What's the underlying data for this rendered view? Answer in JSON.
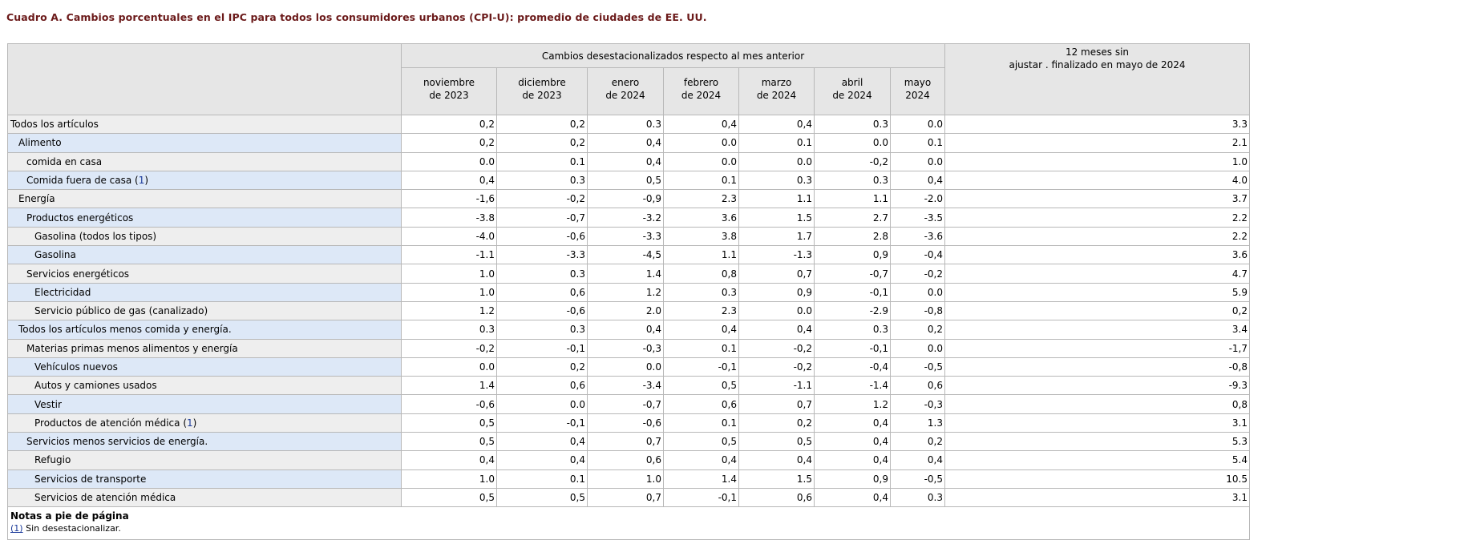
{
  "title": "Cuadro A. Cambios porcentuales en el IPC para todos los consumidores urbanos (CPI-U): promedio de ciudades de EE. UU.",
  "header": {
    "group_label": "Cambios desestacionalizados respecto al mes anterior",
    "annual_label_1": "12 meses sin",
    "annual_label_2": "ajustar . finalizado en mayo de 2024",
    "months": [
      {
        "line1": "noviembre",
        "line2": "de 2023"
      },
      {
        "line1": "diciembre",
        "line2": "de 2023"
      },
      {
        "line1": "enero",
        "line2": "de 2024"
      },
      {
        "line1": "febrero",
        "line2": "de 2024"
      },
      {
        "line1": "marzo",
        "line2": "de 2024"
      },
      {
        "line1": "abril",
        "line2": "de 2024"
      },
      {
        "line1": "mayo",
        "line2": "2024"
      }
    ]
  },
  "rows": [
    {
      "label": "Todos los artículos",
      "level": 0,
      "fn": "",
      "values": [
        "0,2",
        "0,2",
        "0.3",
        "0,4",
        "0,4",
        "0.3",
        "0.0"
      ],
      "annual": "3.3"
    },
    {
      "label": "Alimento",
      "level": 1,
      "fn": "",
      "values": [
        "0,2",
        "0,2",
        "0,4",
        "0.0",
        "0.1",
        "0.0",
        "0.1"
      ],
      "annual": "2.1"
    },
    {
      "label": "comida en casa",
      "level": 2,
      "fn": "",
      "values": [
        "0.0",
        "0.1",
        "0,4",
        "0.0",
        "0.0",
        "-0,2",
        "0.0"
      ],
      "annual": "1.0"
    },
    {
      "label": "Comida fuera de casa",
      "level": 2,
      "fn": "1",
      "values": [
        "0,4",
        "0.3",
        "0,5",
        "0.1",
        "0.3",
        "0.3",
        "0,4"
      ],
      "annual": "4.0"
    },
    {
      "label": "Energía",
      "level": 1,
      "fn": "",
      "values": [
        "-1,6",
        "-0,2",
        "-0,9",
        "2.3",
        "1.1",
        "1.1",
        "-2.0"
      ],
      "annual": "3.7"
    },
    {
      "label": "Productos energéticos",
      "level": 2,
      "fn": "",
      "values": [
        "-3.8",
        "-0,7",
        "-3.2",
        "3.6",
        "1.5",
        "2.7",
        "-3.5"
      ],
      "annual": "2.2"
    },
    {
      "label": "Gasolina (todos los tipos)",
      "level": 3,
      "fn": "",
      "values": [
        "-4.0",
        "-0,6",
        "-3.3",
        "3.8",
        "1.7",
        "2.8",
        "-3.6"
      ],
      "annual": "2.2"
    },
    {
      "label": "Gasolina",
      "level": 3,
      "fn": "",
      "values": [
        "-1.1",
        "-3.3",
        "-4,5",
        "1.1",
        "-1.3",
        "0,9",
        "-0,4"
      ],
      "annual": "3.6"
    },
    {
      "label": "Servicios energéticos",
      "level": 2,
      "fn": "",
      "values": [
        "1.0",
        "0.3",
        "1.4",
        "0,8",
        "0,7",
        "-0,7",
        "-0,2"
      ],
      "annual": "4.7"
    },
    {
      "label": "Electricidad",
      "level": 3,
      "fn": "",
      "values": [
        "1.0",
        "0,6",
        "1.2",
        "0.3",
        "0,9",
        "-0,1",
        "0.0"
      ],
      "annual": "5.9"
    },
    {
      "label": "Servicio público de gas (canalizado)",
      "level": 3,
      "fn": "",
      "values": [
        "1.2",
        "-0,6",
        "2.0",
        "2.3",
        "0.0",
        "-2.9",
        "-0,8"
      ],
      "annual": "0,2"
    },
    {
      "label": "Todos los artículos menos comida y energía.",
      "level": 1,
      "fn": "",
      "values": [
        "0.3",
        "0.3",
        "0,4",
        "0,4",
        "0,4",
        "0.3",
        "0,2"
      ],
      "annual": "3.4"
    },
    {
      "label": "Materias primas menos alimentos y energía",
      "level": 2,
      "fn": "",
      "values": [
        "-0,2",
        "-0,1",
        "-0,3",
        "0.1",
        "-0,2",
        "-0,1",
        "0.0"
      ],
      "annual": "-1,7"
    },
    {
      "label": "Vehículos nuevos",
      "level": 3,
      "fn": "",
      "values": [
        "0.0",
        "0,2",
        "0.0",
        "-0,1",
        "-0,2",
        "-0,4",
        "-0,5"
      ],
      "annual": "-0,8"
    },
    {
      "label": "Autos y camiones usados",
      "level": 3,
      "fn": "",
      "values": [
        "1.4",
        "0,6",
        "-3.4",
        "0,5",
        "-1.1",
        "-1.4",
        "0,6"
      ],
      "annual": "-9.3"
    },
    {
      "label": "Vestir",
      "level": 3,
      "fn": "",
      "values": [
        "-0,6",
        "0.0",
        "-0,7",
        "0,6",
        "0,7",
        "1.2",
        "-0,3"
      ],
      "annual": "0,8"
    },
    {
      "label": "Productos de atención médica",
      "level": 3,
      "fn": "1",
      "values": [
        "0,5",
        "-0,1",
        "-0,6",
        "0.1",
        "0,2",
        "0,4",
        "1.3"
      ],
      "annual": "3.1"
    },
    {
      "label": "Servicios menos servicios de energía.",
      "level": 2,
      "fn": "",
      "values": [
        "0,5",
        "0,4",
        "0,7",
        "0,5",
        "0,5",
        "0,4",
        "0,2"
      ],
      "annual": "5.3"
    },
    {
      "label": "Refugio",
      "level": 3,
      "fn": "",
      "values": [
        "0,4",
        "0,4",
        "0,6",
        "0,4",
        "0,4",
        "0,4",
        "0,4"
      ],
      "annual": "5.4"
    },
    {
      "label": "Servicios de transporte",
      "level": 3,
      "fn": "",
      "values": [
        "1.0",
        "0.1",
        "1.0",
        "1.4",
        "1.5",
        "0,9",
        "-0,5"
      ],
      "annual": "10.5"
    },
    {
      "label": "Servicios de atención médica",
      "level": 3,
      "fn": "",
      "values": [
        "0,5",
        "0,5",
        "0,7",
        "-0,1",
        "0,6",
        "0,4",
        "0.3"
      ],
      "annual": "3.1"
    }
  ],
  "footnotes": {
    "title": "Notas a pie de página",
    "items": [
      {
        "ref": "(1)",
        "text": " Sin desestacionalizar."
      }
    ]
  }
}
